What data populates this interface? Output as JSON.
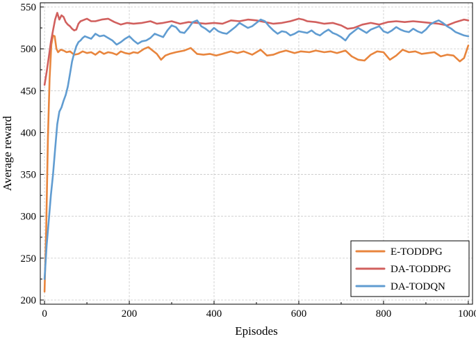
{
  "chart_data": {
    "type": "line",
    "xlabel": "Episodes",
    "ylabel": "Average reward",
    "xlim": [
      -10,
      1010
    ],
    "ylim": [
      195,
      555
    ],
    "xticks": [
      0,
      200,
      400,
      600,
      800,
      1000
    ],
    "yticks": [
      200,
      250,
      300,
      350,
      400,
      450,
      500,
      550
    ],
    "grid": true,
    "legend_position": "bottom-right",
    "series": [
      {
        "name": "E-TODDPG",
        "color": "#e8853d",
        "points": [
          [
            0,
            210
          ],
          [
            4,
            285
          ],
          [
            8,
            395
          ],
          [
            12,
            465
          ],
          [
            16,
            505
          ],
          [
            20,
            516
          ],
          [
            24,
            515
          ],
          [
            28,
            500
          ],
          [
            32,
            496
          ],
          [
            38,
            499
          ],
          [
            45,
            498
          ],
          [
            52,
            496
          ],
          [
            60,
            497
          ],
          [
            70,
            493
          ],
          [
            80,
            494
          ],
          [
            90,
            497
          ],
          [
            100,
            495
          ],
          [
            110,
            496
          ],
          [
            120,
            493
          ],
          [
            130,
            497
          ],
          [
            140,
            494
          ],
          [
            150,
            496
          ],
          [
            160,
            495
          ],
          [
            170,
            493
          ],
          [
            180,
            497
          ],
          [
            190,
            495
          ],
          [
            200,
            494
          ],
          [
            210,
            496
          ],
          [
            220,
            495
          ],
          [
            235,
            500
          ],
          [
            245,
            502
          ],
          [
            255,
            498
          ],
          [
            265,
            494
          ],
          [
            275,
            487
          ],
          [
            285,
            492
          ],
          [
            295,
            494
          ],
          [
            310,
            496
          ],
          [
            330,
            498
          ],
          [
            345,
            501
          ],
          [
            360,
            494
          ],
          [
            375,
            493
          ],
          [
            390,
            494
          ],
          [
            405,
            492
          ],
          [
            420,
            494
          ],
          [
            440,
            497
          ],
          [
            455,
            495
          ],
          [
            470,
            497
          ],
          [
            490,
            493
          ],
          [
            510,
            499
          ],
          [
            525,
            492
          ],
          [
            540,
            493
          ],
          [
            555,
            496
          ],
          [
            570,
            498
          ],
          [
            590,
            495
          ],
          [
            605,
            497
          ],
          [
            625,
            496
          ],
          [
            640,
            498
          ],
          [
            660,
            496
          ],
          [
            675,
            497
          ],
          [
            690,
            495
          ],
          [
            710,
            498
          ],
          [
            725,
            491
          ],
          [
            740,
            487
          ],
          [
            755,
            486
          ],
          [
            770,
            493
          ],
          [
            785,
            497
          ],
          [
            800,
            496
          ],
          [
            815,
            487
          ],
          [
            830,
            492
          ],
          [
            845,
            499
          ],
          [
            860,
            496
          ],
          [
            875,
            497
          ],
          [
            890,
            494
          ],
          [
            905,
            495
          ],
          [
            920,
            496
          ],
          [
            935,
            491
          ],
          [
            950,
            493
          ],
          [
            965,
            492
          ],
          [
            980,
            485
          ],
          [
            990,
            489
          ],
          [
            1000,
            504
          ]
        ]
      },
      {
        "name": "DA-TODDPG",
        "color": "#d1605e",
        "points": [
          [
            0,
            457
          ],
          [
            5,
            472
          ],
          [
            10,
            490
          ],
          [
            15,
            508
          ],
          [
            20,
            522
          ],
          [
            25,
            535
          ],
          [
            30,
            543
          ],
          [
            35,
            535
          ],
          [
            40,
            540
          ],
          [
            45,
            538
          ],
          [
            50,
            532
          ],
          [
            55,
            529
          ],
          [
            60,
            527
          ],
          [
            65,
            524
          ],
          [
            70,
            522
          ],
          [
            75,
            523
          ],
          [
            80,
            530
          ],
          [
            85,
            533
          ],
          [
            90,
            534
          ],
          [
            95,
            535
          ],
          [
            100,
            536
          ],
          [
            110,
            533
          ],
          [
            120,
            533
          ],
          [
            135,
            535
          ],
          [
            150,
            536
          ],
          [
            165,
            532
          ],
          [
            180,
            529
          ],
          [
            195,
            531
          ],
          [
            210,
            530
          ],
          [
            230,
            531
          ],
          [
            250,
            533
          ],
          [
            265,
            530
          ],
          [
            280,
            531
          ],
          [
            300,
            533
          ],
          [
            320,
            530
          ],
          [
            340,
            532
          ],
          [
            360,
            531
          ],
          [
            380,
            530
          ],
          [
            400,
            531
          ],
          [
            420,
            530
          ],
          [
            440,
            534
          ],
          [
            460,
            533
          ],
          [
            480,
            535
          ],
          [
            500,
            534
          ],
          [
            520,
            532
          ],
          [
            540,
            530
          ],
          [
            560,
            531
          ],
          [
            580,
            533
          ],
          [
            600,
            536
          ],
          [
            610,
            535
          ],
          [
            620,
            533
          ],
          [
            640,
            532
          ],
          [
            660,
            530
          ],
          [
            680,
            531
          ],
          [
            700,
            528
          ],
          [
            715,
            524
          ],
          [
            730,
            525
          ],
          [
            750,
            529
          ],
          [
            770,
            531
          ],
          [
            790,
            529
          ],
          [
            810,
            532
          ],
          [
            830,
            533
          ],
          [
            850,
            532
          ],
          [
            870,
            533
          ],
          [
            890,
            532
          ],
          [
            910,
            531
          ],
          [
            930,
            530
          ],
          [
            950,
            528
          ],
          [
            970,
            532
          ],
          [
            990,
            535
          ],
          [
            1000,
            534
          ]
        ]
      },
      {
        "name": "DA-TODQN",
        "color": "#609cd1",
        "points": [
          [
            0,
            225
          ],
          [
            5,
            265
          ],
          [
            10,
            295
          ],
          [
            15,
            325
          ],
          [
            20,
            350
          ],
          [
            25,
            380
          ],
          [
            30,
            410
          ],
          [
            35,
            425
          ],
          [
            40,
            430
          ],
          [
            45,
            438
          ],
          [
            50,
            445
          ],
          [
            55,
            455
          ],
          [
            60,
            470
          ],
          [
            65,
            485
          ],
          [
            70,
            495
          ],
          [
            75,
            503
          ],
          [
            80,
            508
          ],
          [
            85,
            510
          ],
          [
            90,
            513
          ],
          [
            95,
            515
          ],
          [
            100,
            514
          ],
          [
            110,
            512
          ],
          [
            120,
            518
          ],
          [
            130,
            515
          ],
          [
            140,
            516
          ],
          [
            150,
            513
          ],
          [
            160,
            510
          ],
          [
            170,
            505
          ],
          [
            180,
            508
          ],
          [
            190,
            512
          ],
          [
            200,
            515
          ],
          [
            210,
            510
          ],
          [
            220,
            506
          ],
          [
            230,
            509
          ],
          [
            240,
            510
          ],
          [
            250,
            513
          ],
          [
            260,
            518
          ],
          [
            270,
            516
          ],
          [
            280,
            514
          ],
          [
            290,
            522
          ],
          [
            300,
            528
          ],
          [
            310,
            526
          ],
          [
            320,
            520
          ],
          [
            330,
            519
          ],
          [
            340,
            525
          ],
          [
            350,
            532
          ],
          [
            360,
            534
          ],
          [
            370,
            527
          ],
          [
            380,
            524
          ],
          [
            390,
            520
          ],
          [
            400,
            525
          ],
          [
            410,
            521
          ],
          [
            420,
            519
          ],
          [
            430,
            518
          ],
          [
            440,
            522
          ],
          [
            450,
            526
          ],
          [
            460,
            531
          ],
          [
            470,
            528
          ],
          [
            480,
            525
          ],
          [
            490,
            527
          ],
          [
            500,
            531
          ],
          [
            510,
            535
          ],
          [
            520,
            533
          ],
          [
            530,
            527
          ],
          [
            540,
            522
          ],
          [
            550,
            518
          ],
          [
            560,
            521
          ],
          [
            570,
            520
          ],
          [
            580,
            516
          ],
          [
            590,
            518
          ],
          [
            600,
            521
          ],
          [
            610,
            520
          ],
          [
            620,
            519
          ],
          [
            630,
            522
          ],
          [
            640,
            518
          ],
          [
            650,
            516
          ],
          [
            660,
            520
          ],
          [
            670,
            523
          ],
          [
            680,
            519
          ],
          [
            690,
            517
          ],
          [
            700,
            514
          ],
          [
            710,
            510
          ],
          [
            720,
            517
          ],
          [
            730,
            521
          ],
          [
            740,
            525
          ],
          [
            750,
            522
          ],
          [
            760,
            519
          ],
          [
            770,
            523
          ],
          [
            780,
            525
          ],
          [
            790,
            527
          ],
          [
            800,
            521
          ],
          [
            810,
            519
          ],
          [
            820,
            522
          ],
          [
            830,
            526
          ],
          [
            840,
            523
          ],
          [
            850,
            521
          ],
          [
            860,
            520
          ],
          [
            870,
            524
          ],
          [
            880,
            521
          ],
          [
            890,
            519
          ],
          [
            900,
            523
          ],
          [
            910,
            529
          ],
          [
            920,
            532
          ],
          [
            930,
            534
          ],
          [
            940,
            531
          ],
          [
            950,
            527
          ],
          [
            960,
            524
          ],
          [
            970,
            520
          ],
          [
            980,
            518
          ],
          [
            990,
            516
          ],
          [
            1000,
            515
          ]
        ]
      }
    ]
  }
}
